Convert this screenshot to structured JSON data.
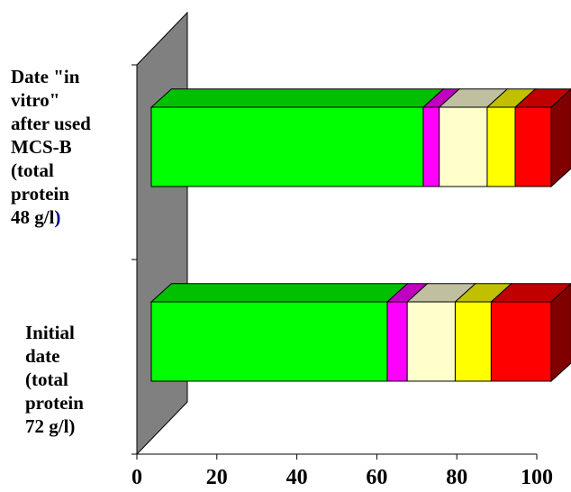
{
  "chart_data": {
    "type": "bar",
    "orientation": "horizontal",
    "stacked": true,
    "three_d": true,
    "categories": [
      [
        "Date \"in",
        "vitro\"",
        "after used",
        "MCS-B",
        "(total",
        "protein",
        "48 g/l",
        ")"
      ],
      [
        "Initial",
        "date",
        "(total",
        "protein",
        "72 g/l)"
      ]
    ],
    "series": [
      {
        "values": [
          68,
          59
        ]
      },
      {
        "values": [
          4,
          5
        ]
      },
      {
        "values": [
          12,
          12
        ]
      },
      {
        "values": [
          7,
          9
        ]
      },
      {
        "values": [
          9,
          15
        ]
      }
    ],
    "colors": {
      "front": [
        "#00ff00",
        "#ff00ff",
        "#ffffcc",
        "#ffff00",
        "#ff0000"
      ],
      "top": [
        "#00c000",
        "#c000c0",
        "#c0c0a0",
        "#c0c000",
        "#c00000"
      ],
      "side": "#800000",
      "wall": "#808080",
      "last_char_color": "#000080"
    },
    "xticks": [
      "0",
      "20",
      "40",
      "60",
      "80",
      "100"
    ],
    "xlim": [
      0,
      100
    ],
    "title": "",
    "xlabel": "",
    "ylabel": ""
  }
}
